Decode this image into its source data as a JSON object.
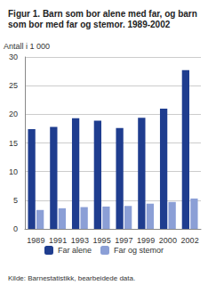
{
  "chart_data": {
    "type": "bar",
    "title": "Figur 1. Barn som bor alene med far, og barn som bor med far og stemor. 1989-2002",
    "y_label": "Antall i 1 000",
    "source": "Kilde: Barnestatistikk, bearbeidede data.",
    "categories": [
      "1989",
      "1991",
      "1993",
      "1995",
      "1997",
      "1999",
      "2000",
      "2002"
    ],
    "series": [
      {
        "name": "Far alene",
        "color": "#1f3d8f",
        "values": [
          17.4,
          17.8,
          19.3,
          18.9,
          17.6,
          19.4,
          21.0,
          27.7
        ]
      },
      {
        "name": "Far og stemor",
        "color": "#8b9fd6",
        "values": [
          3.3,
          3.6,
          3.8,
          3.9,
          4.0,
          4.4,
          4.7,
          5.3
        ]
      }
    ],
    "ylim": [
      0,
      30
    ],
    "yticks": [
      0,
      5,
      10,
      15,
      20,
      25,
      30
    ],
    "grid": true,
    "legend": "bottom"
  }
}
